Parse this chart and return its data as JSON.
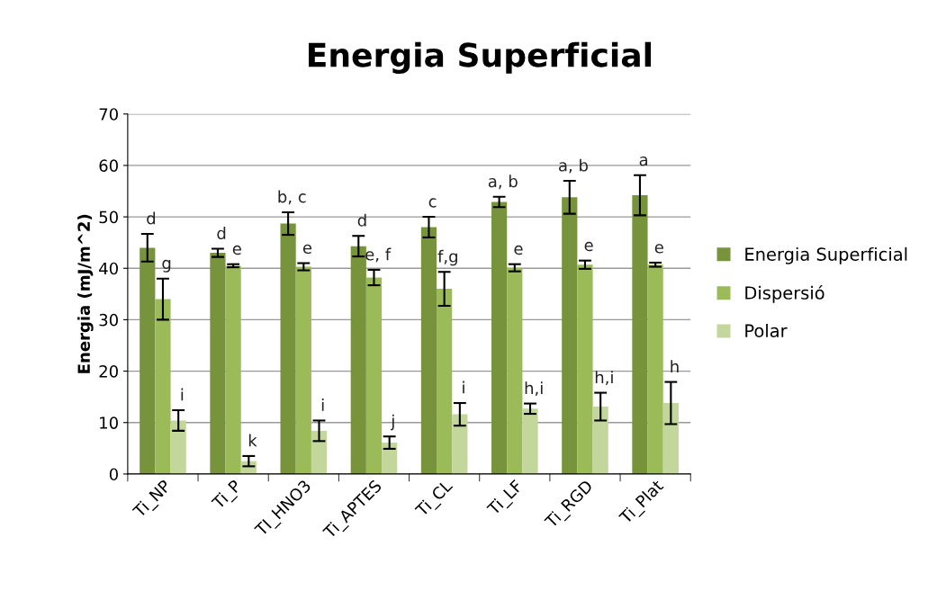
{
  "chart_data": {
    "type": "bar",
    "title": "Energia Superficial",
    "ylabel": "Energia (mJ/m^2)",
    "categories": [
      "Ti_NP",
      "Ti_P",
      "TI_HNO3",
      "Ti_APTES",
      "Ti_CL",
      "Ti_LF",
      "Ti_RGD",
      "Ti_Plat"
    ],
    "series": [
      {
        "name": "Energia Superficial",
        "color": "#77933c",
        "values": [
          44,
          43,
          48.7,
          44.3,
          48,
          52.9,
          53.8,
          54.2
        ],
        "errors": [
          2.7,
          0.8,
          2.2,
          2,
          2,
          1,
          3.2,
          3.9
        ]
      },
      {
        "name": "Dispersió",
        "color": "#9bbb59",
        "values": [
          34,
          40.5,
          40.3,
          38.2,
          36,
          40.1,
          40.7,
          40.7
        ],
        "errors": [
          4,
          0.3,
          0.7,
          1.5,
          3.3,
          0.7,
          0.8,
          0.4
        ]
      },
      {
        "name": "Polar",
        "color": "#c3d69b",
        "values": [
          10.4,
          2.5,
          8.4,
          6.1,
          11.6,
          12.7,
          13.1,
          13.8
        ],
        "errors": [
          2,
          1,
          2,
          1.2,
          2.2,
          1,
          2.7,
          4.1
        ]
      }
    ],
    "ylim": [
      0,
      70
    ],
    "yticks": [
      0,
      10,
      20,
      30,
      40,
      50,
      60,
      70
    ],
    "grid": "y",
    "legend": "right",
    "annotations": [
      "d",
      "g",
      "i",
      "d",
      "e",
      "k",
      "b, c",
      "e",
      "i",
      "d",
      "e, f",
      "j",
      "c",
      "f,g",
      "i",
      "a, b",
      "e",
      "h,i",
      "a, b",
      "e",
      "h,i",
      "a",
      "e",
      "h"
    ]
  }
}
